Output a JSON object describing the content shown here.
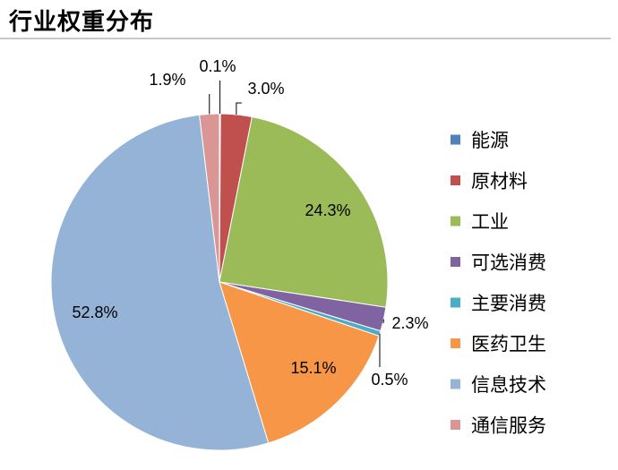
{
  "chart_data": {
    "type": "pie",
    "title": "行业权重分布",
    "legend_position": "right",
    "slices": [
      {
        "label": "能源",
        "value": 0.1,
        "value_label": "0.1%",
        "color": "#4f81bd"
      },
      {
        "label": "原材料",
        "value": 3.0,
        "value_label": "3.0%",
        "color": "#c0504d"
      },
      {
        "label": "工业",
        "value": 24.3,
        "value_label": "24.3%",
        "color": "#9bbb59"
      },
      {
        "label": "可选消费",
        "value": 2.3,
        "value_label": "2.3%",
        "color": "#8064a2"
      },
      {
        "label": "主要消费",
        "value": 0.5,
        "value_label": "0.5%",
        "color": "#4bacc6"
      },
      {
        "label": "医药卫生",
        "value": 15.1,
        "value_label": "15.1%",
        "color": "#f79646"
      },
      {
        "label": "信息技术",
        "value": 52.8,
        "value_label": "52.8%",
        "color": "#95b3d7"
      },
      {
        "label": "通信服务",
        "value": 1.9,
        "value_label": "1.9%",
        "color": "#d99694"
      }
    ]
  }
}
